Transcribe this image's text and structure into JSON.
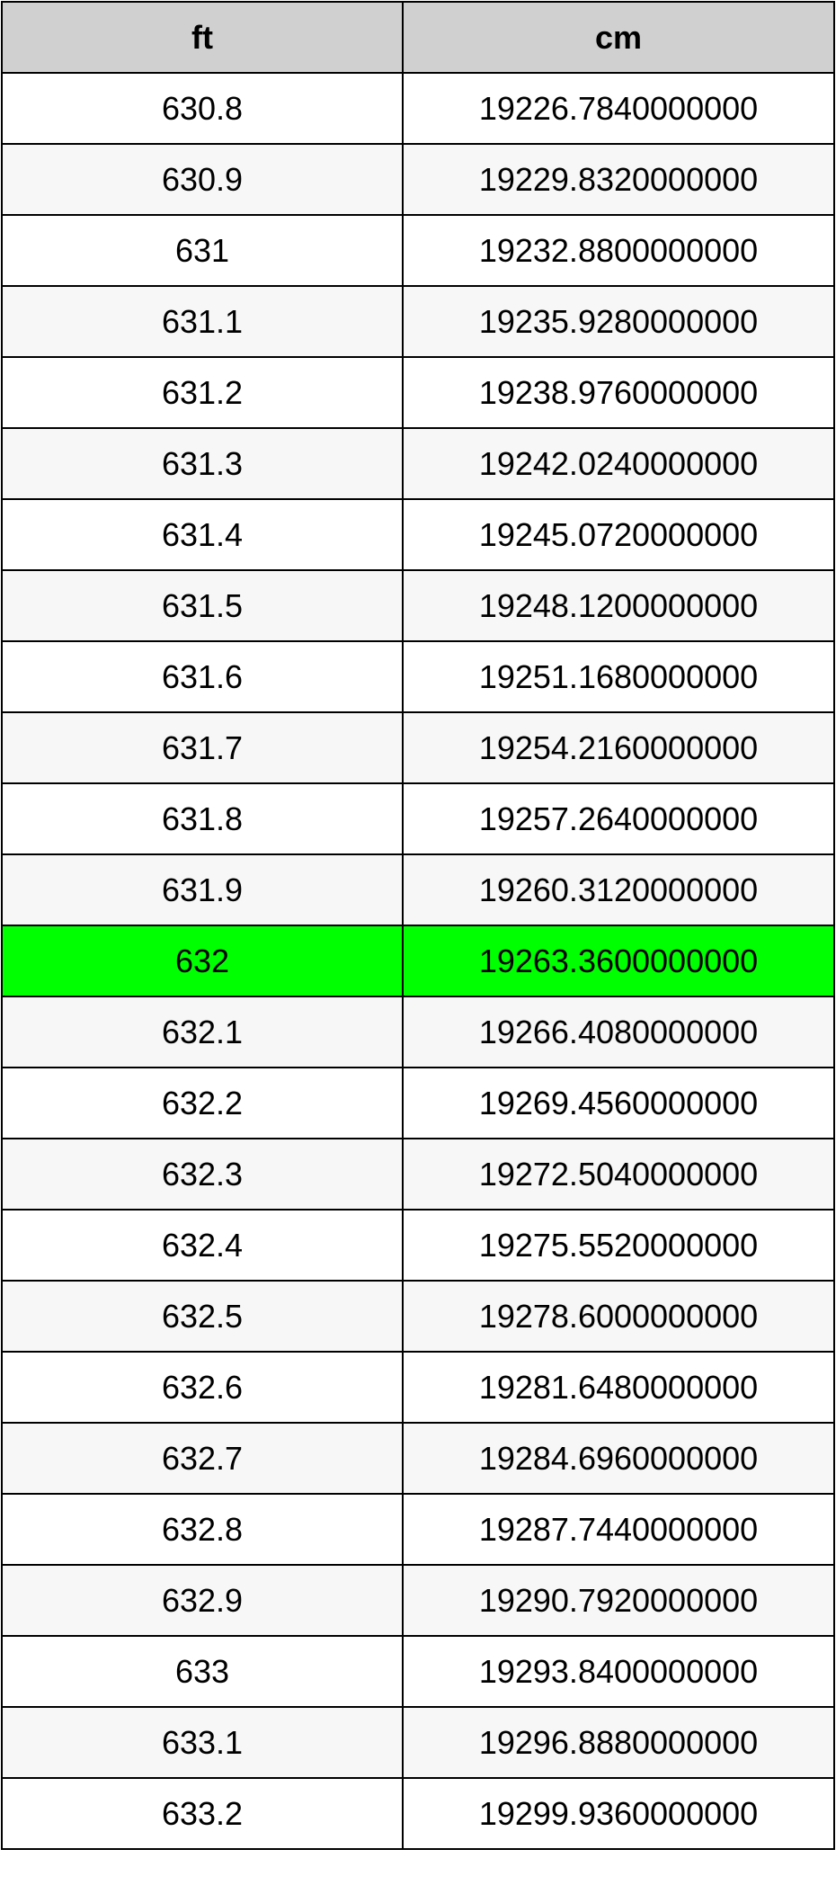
{
  "table": {
    "headers": [
      "ft",
      "cm"
    ],
    "highlight_color": "#00ff00",
    "highlighted_row": 12,
    "rows": [
      [
        "630.8",
        "19226.7840000000"
      ],
      [
        "630.9",
        "19229.8320000000"
      ],
      [
        "631",
        "19232.8800000000"
      ],
      [
        "631.1",
        "19235.9280000000"
      ],
      [
        "631.2",
        "19238.9760000000"
      ],
      [
        "631.3",
        "19242.0240000000"
      ],
      [
        "631.4",
        "19245.0720000000"
      ],
      [
        "631.5",
        "19248.1200000000"
      ],
      [
        "631.6",
        "19251.1680000000"
      ],
      [
        "631.7",
        "19254.2160000000"
      ],
      [
        "631.8",
        "19257.2640000000"
      ],
      [
        "631.9",
        "19260.3120000000"
      ],
      [
        "632",
        "19263.3600000000"
      ],
      [
        "632.1",
        "19266.4080000000"
      ],
      [
        "632.2",
        "19269.4560000000"
      ],
      [
        "632.3",
        "19272.5040000000"
      ],
      [
        "632.4",
        "19275.5520000000"
      ],
      [
        "632.5",
        "19278.6000000000"
      ],
      [
        "632.6",
        "19281.6480000000"
      ],
      [
        "632.7",
        "19284.6960000000"
      ],
      [
        "632.8",
        "19287.7440000000"
      ],
      [
        "632.9",
        "19290.7920000000"
      ],
      [
        "633",
        "19293.8400000000"
      ],
      [
        "633.1",
        "19296.8880000000"
      ],
      [
        "633.2",
        "19299.9360000000"
      ]
    ]
  }
}
